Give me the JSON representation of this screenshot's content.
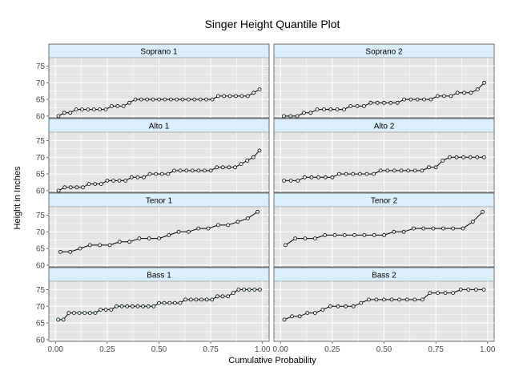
{
  "chart_data": {
    "type": "scatter",
    "title": "Singer Height Quantile Plot",
    "xlabel": "Cumulative Probability",
    "ylabel": "Height in Inches",
    "xlim": [
      0,
      1
    ],
    "ylim": [
      59.5,
      77.5
    ],
    "x_ticks": [
      "0.00",
      "0.25",
      "0.50",
      "0.75",
      "1.00"
    ],
    "y_ticks": [
      "60",
      "65",
      "70",
      "75"
    ],
    "grid": true,
    "panels": [
      {
        "name": "Soprano 1",
        "values": [
          60,
          61,
          61,
          62,
          62,
          62,
          62,
          62,
          62,
          63,
          63,
          63,
          64,
          65,
          65,
          65,
          65,
          65,
          65,
          65,
          65,
          65,
          65,
          65,
          65,
          65,
          65,
          66,
          66,
          66,
          66,
          66,
          66,
          67,
          68
        ]
      },
      {
        "name": "Soprano 2",
        "values": [
          60,
          60,
          60,
          61,
          61,
          62,
          62,
          62,
          62,
          62,
          63,
          63,
          63,
          64,
          64,
          64,
          64,
          64,
          65,
          65,
          65,
          65,
          65,
          66,
          66,
          66,
          67,
          67,
          67,
          68,
          70
        ]
      },
      {
        "name": "Alto 1",
        "values": [
          60,
          61,
          61,
          61,
          61,
          62,
          62,
          62,
          63,
          63,
          63,
          63,
          64,
          64,
          64,
          65,
          65,
          65,
          65,
          66,
          66,
          66,
          66,
          66,
          66,
          66,
          67,
          67,
          67,
          67,
          68,
          69,
          70,
          72
        ]
      },
      {
        "name": "Alto 2",
        "values": [
          63,
          63,
          63,
          64,
          64,
          64,
          64,
          64,
          65,
          65,
          65,
          65,
          65,
          65,
          66,
          66,
          66,
          66,
          66,
          66,
          66,
          67,
          67,
          69,
          70,
          70,
          70,
          70,
          70,
          70
        ]
      },
      {
        "name": "Tenor 1",
        "values": [
          64,
          64,
          65,
          66,
          66,
          66,
          67,
          67,
          68,
          68,
          68,
          69,
          70,
          70,
          71,
          71,
          72,
          72,
          73,
          74,
          76
        ]
      },
      {
        "name": "Tenor 2",
        "values": [
          66,
          68,
          68,
          68,
          69,
          69,
          69,
          69,
          69,
          69,
          69,
          70,
          70,
          71,
          71,
          71,
          71,
          71,
          71,
          73,
          76
        ]
      },
      {
        "name": "Bass 1",
        "values": [
          66,
          66,
          68,
          68,
          68,
          68,
          68,
          68,
          69,
          69,
          69,
          70,
          70,
          70,
          70,
          70,
          70,
          70,
          70,
          71,
          71,
          71,
          71,
          71,
          72,
          72,
          72,
          72,
          72,
          72,
          73,
          73,
          73,
          74,
          75,
          75,
          75,
          75,
          75
        ]
      },
      {
        "name": "Bass 2",
        "values": [
          66,
          67,
          67,
          68,
          68,
          69,
          70,
          70,
          70,
          70,
          71,
          72,
          72,
          72,
          72,
          72,
          72,
          72,
          72,
          74,
          74,
          74,
          74,
          75,
          75,
          75,
          75
        ]
      }
    ]
  }
}
